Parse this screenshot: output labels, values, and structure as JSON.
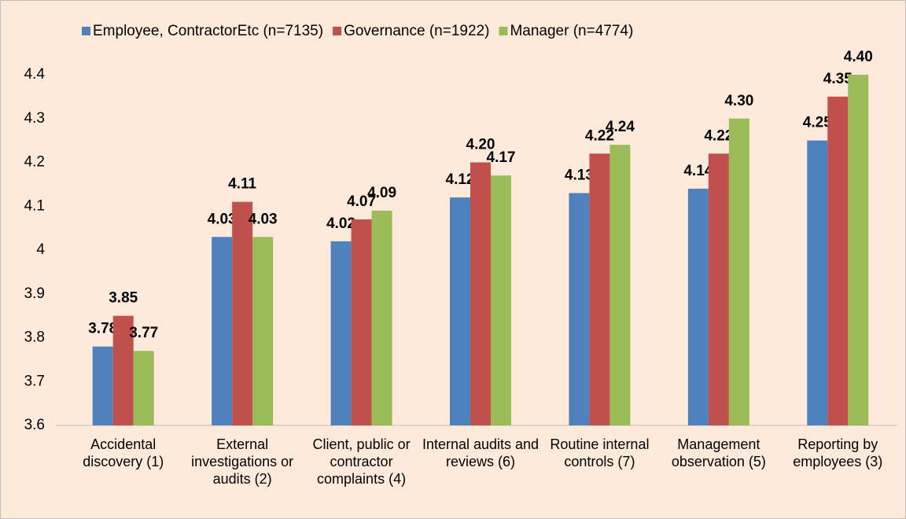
{
  "chart_data": {
    "type": "bar",
    "categories": [
      "Accidental discovery (1)",
      "External investigations or audits (2)",
      "Client, public or contractor complaints (4)",
      "Internal audits and reviews (6)",
      "Routine internal controls (7)",
      "Management observation (5)",
      "Reporting by employees (3)"
    ],
    "series": [
      {
        "name": "Employee, ContractorEtc (n=7135)",
        "color": "#4f81bd",
        "values": [
          3.78,
          4.03,
          4.02,
          4.12,
          4.13,
          4.14,
          4.25
        ],
        "value_labels": [
          "3.78",
          "4.03",
          "4.02",
          "4.12",
          "4.13",
          "4.14",
          "4.25"
        ]
      },
      {
        "name": "Governance (n=1922)",
        "color": "#c0504d",
        "values": [
          3.85,
          4.11,
          4.07,
          4.2,
          4.22,
          4.22,
          4.35
        ],
        "value_labels": [
          "3.85",
          "4.11",
          "4.07",
          "4.20",
          "4.22",
          "4.22",
          "4.35"
        ]
      },
      {
        "name": "Manager (n=4774)",
        "color": "#9bbb59",
        "values": [
          3.77,
          4.03,
          4.09,
          4.17,
          4.24,
          4.3,
          4.4
        ],
        "value_labels": [
          "3.77",
          "4.03",
          "4.09",
          "4.17",
          "4.24",
          "4.30",
          "4.40"
        ]
      }
    ],
    "ylim": [
      3.6,
      4.4
    ],
    "yticks": [
      3.6,
      3.7,
      3.8,
      3.9,
      4,
      4.1,
      4.2,
      4.3,
      4.4
    ],
    "legend": "top"
  }
}
